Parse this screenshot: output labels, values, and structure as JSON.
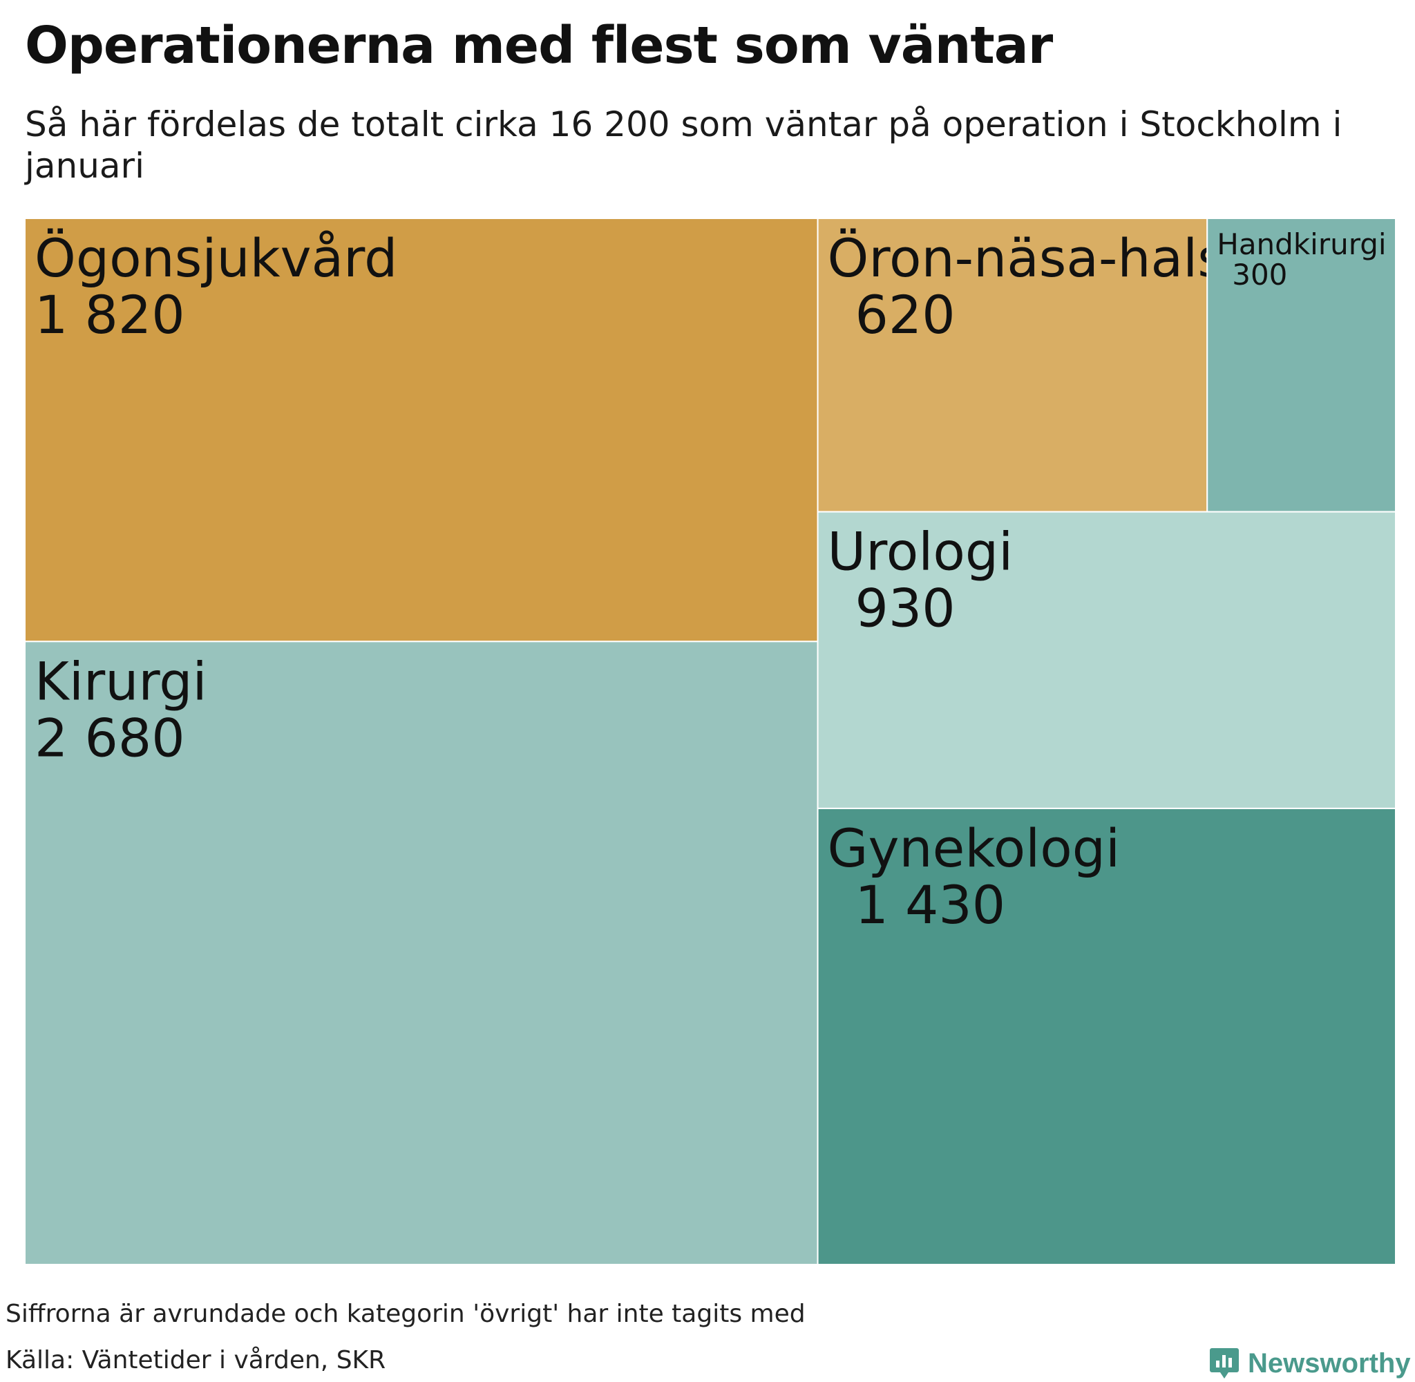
{
  "header": {
    "title": "Operationerna med flest som väntar",
    "subtitle": "Så här fördelas de totalt cirka 16 200 som väntar på operation i Stockholm i januari"
  },
  "chart_data": {
    "type": "treemap",
    "title": "Operationerna med flest som väntar",
    "subtitle": "Så här fördelas de totalt cirka 16 200 som väntar på operation i Stockholm i januari",
    "items": [
      {
        "name": "Kirurgi",
        "value": 2680,
        "value_label": "2 680",
        "color": "#98c3bd"
      },
      {
        "name": "Ögonsjukvård",
        "value": 1820,
        "value_label": "1 820",
        "color": "#d09d47"
      },
      {
        "name": "Gynekologi",
        "value": 1430,
        "value_label": "1 430",
        "color": "#4d968a"
      },
      {
        "name": "Urologi",
        "value": 930,
        "value_label": "930",
        "color": "#b3d7d0"
      },
      {
        "name": "Öron-näsa-hals",
        "value": 620,
        "value_label": "620",
        "color": "#d9ae64"
      },
      {
        "name": "Handkirurgi",
        "value": 300,
        "value_label": "300",
        "color": "#7eb5ae"
      }
    ]
  },
  "footer": {
    "note": "Siffrorna är avrundade och kategorin 'övrigt' har inte tagits med",
    "source": "Källa: Väntetider i vården, SKR",
    "brand": "Newsworthy",
    "brand_color": "#4a9a8c"
  }
}
